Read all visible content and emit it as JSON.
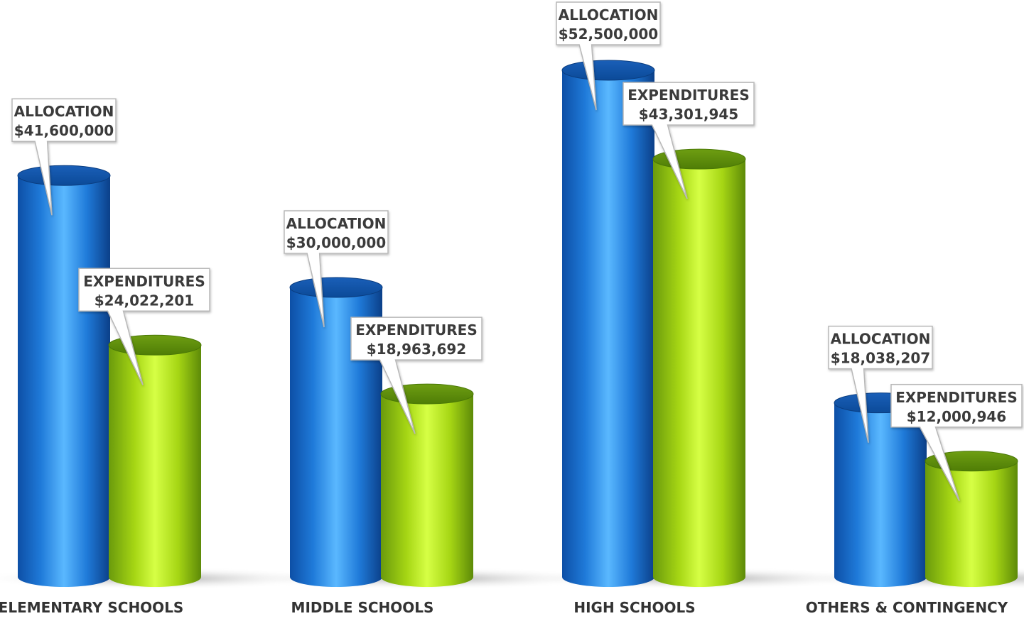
{
  "chart_data": {
    "type": "bar",
    "style": "3d-cylinder",
    "categories": [
      "ELEMENTARY SCHOOLS",
      "MIDDLE SCHOOLS",
      "HIGH SCHOOLS",
      "OTHERS & CONTINGENCY"
    ],
    "series": [
      {
        "key": "allocation",
        "values": [
          41600000,
          30000000,
          52500000,
          18038207
        ],
        "labels": [
          "$41,600,000",
          "$30,000,000",
          "$52,500,000",
          "$18,038,207"
        ],
        "callout_title": "ALLOCATION",
        "color": "#1f7ad9"
      },
      {
        "key": "expenditures",
        "values": [
          24022201,
          18963692,
          43301945,
          12000946
        ],
        "labels": [
          "$24,022,201",
          "$18,963,692",
          "$43,301,945",
          "$12,000,946"
        ],
        "callout_title": "EXPENDITURES",
        "color": "#a6d614"
      }
    ],
    "title": "",
    "xlabel": "",
    "ylabel": "",
    "ylim": [
      0,
      52500000
    ],
    "grid": false,
    "legend": "none"
  }
}
